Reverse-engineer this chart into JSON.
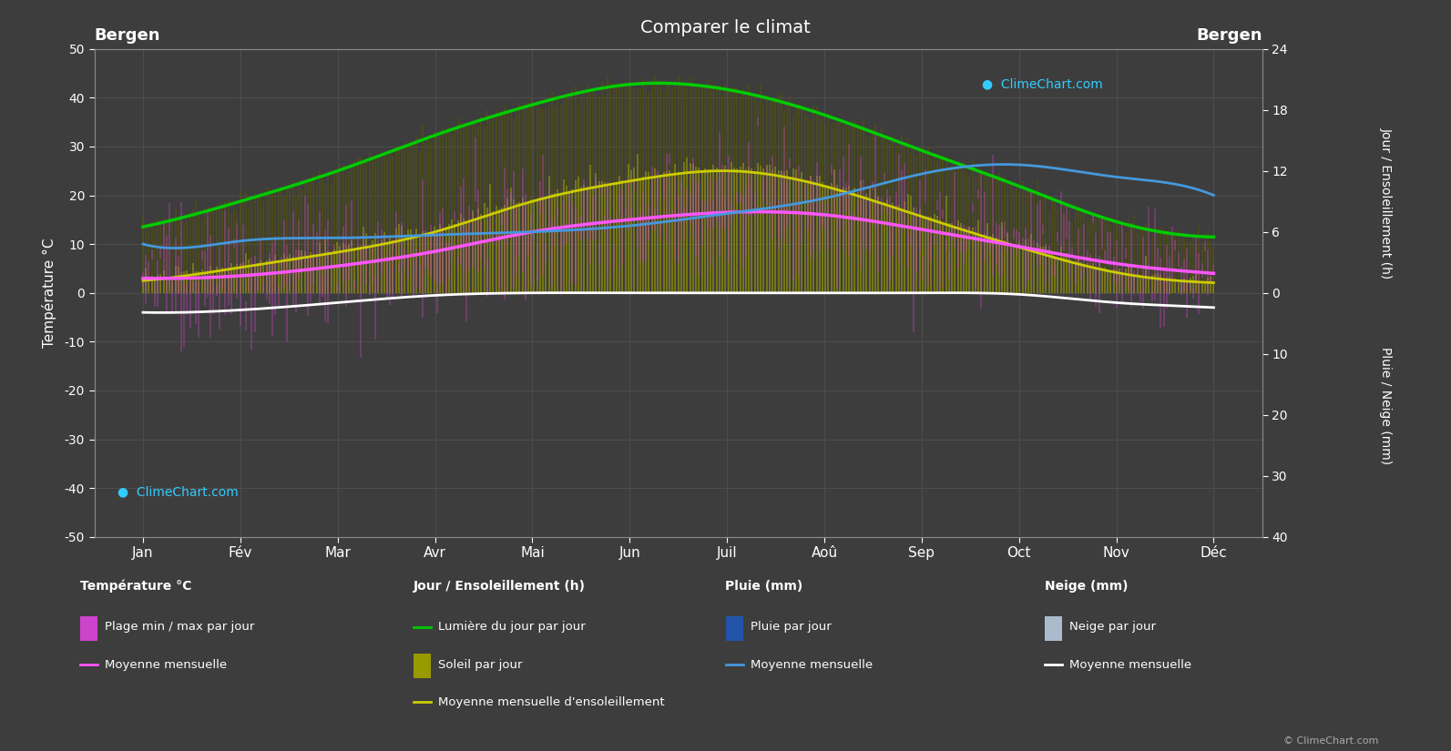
{
  "title": "Comparer le climat",
  "city": "Bergen",
  "background_color": "#3d3d3d",
  "plot_bg_color": "#3d3d3d",
  "months": [
    "Jan",
    "Fév",
    "Mar",
    "Avr",
    "Mai",
    "Jun",
    "Juil",
    "Aoû",
    "Sep",
    "Oct",
    "Nov",
    "Déc"
  ],
  "temp_ylim": [
    -50,
    50
  ],
  "temp_mean": [
    3.0,
    3.5,
    5.5,
    8.5,
    12.5,
    15.0,
    16.5,
    16.0,
    13.0,
    9.5,
    6.0,
    4.0
  ],
  "temp_min_mean": [
    -1.5,
    -1.0,
    0.5,
    3.5,
    7.5,
    10.5,
    12.5,
    12.5,
    9.5,
    6.0,
    2.0,
    0.0
  ],
  "temp_max_mean": [
    6.5,
    7.0,
    9.5,
    13.0,
    17.5,
    20.0,
    21.5,
    21.0,
    17.0,
    13.0,
    9.0,
    7.0
  ],
  "snow_mean_monthly": [
    -4.0,
    -3.5,
    -2.0,
    -0.5,
    0.0,
    0.0,
    0.0,
    0.0,
    0.0,
    -0.3,
    -2.0,
    -3.0
  ],
  "rain_mean_monthly": [
    -8.0,
    -8.5,
    -9.0,
    -9.5,
    -10.0,
    -11.0,
    -13.0,
    -15.5,
    -19.5,
    -21.0,
    -19.0,
    -16.0
  ],
  "daylight_hours": [
    6.5,
    9.0,
    12.0,
    15.5,
    18.5,
    20.5,
    20.0,
    17.5,
    14.0,
    10.5,
    7.0,
    5.5
  ],
  "sunshine_hours": [
    1.2,
    2.5,
    4.0,
    6.0,
    9.0,
    11.0,
    12.0,
    10.5,
    7.5,
    4.5,
    2.0,
    1.0
  ],
  "colors": {
    "daylight_line": "#00cc00",
    "sunshine_line": "#cccc00",
    "sunshine_fill": "#777700",
    "daylight_fill": "#444400",
    "temp_range_fill": "#cc44cc",
    "temp_mean_line": "#ff55ff",
    "snow_mean_line": "#ffffff",
    "rain_fill": "#2255aa",
    "rain_mean_line": "#4499dd",
    "snow_fill": "#8899aa",
    "grid": "#555555",
    "text": "#ffffff",
    "axis_label": "#cccccc"
  }
}
